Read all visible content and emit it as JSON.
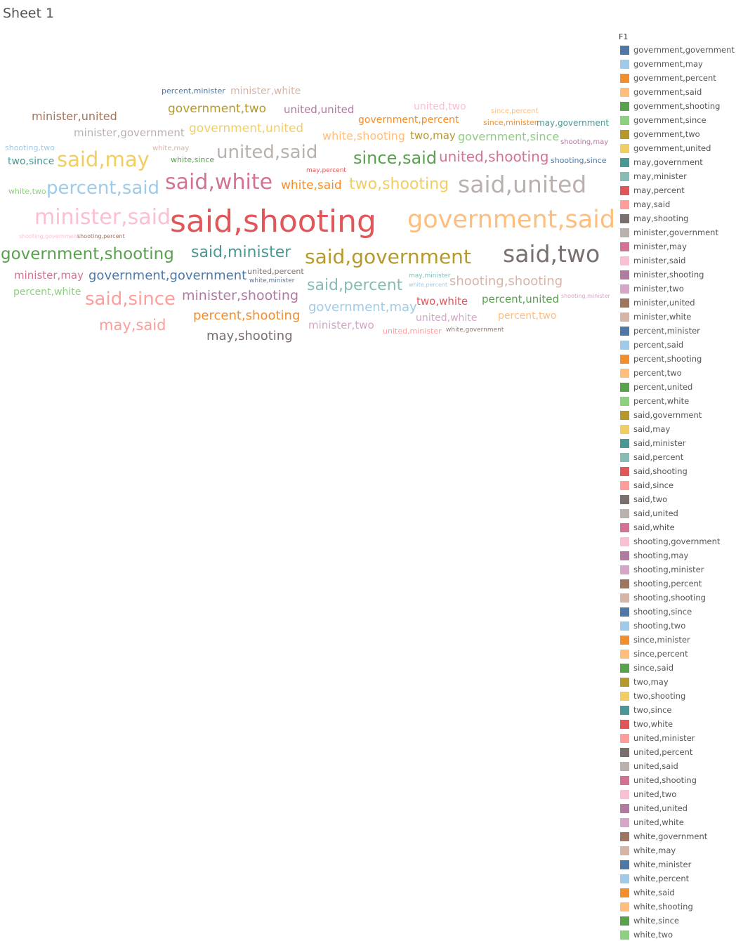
{
  "sheet": {
    "title": "Sheet 1"
  },
  "chart_data": {
    "type": "wordcloud",
    "legend": {
      "title": "F1",
      "placement": "right",
      "items": [
        {
          "label": "government,government",
          "color": "#4e79a7"
        },
        {
          "label": "government,may",
          "color": "#a0cbe8"
        },
        {
          "label": "government,percent",
          "color": "#f28e2b"
        },
        {
          "label": "government,said",
          "color": "#ffbe7d"
        },
        {
          "label": "government,shooting",
          "color": "#59a14f"
        },
        {
          "label": "government,since",
          "color": "#8cd17d"
        },
        {
          "label": "government,two",
          "color": "#b6992d"
        },
        {
          "label": "government,united",
          "color": "#f1ce63"
        },
        {
          "label": "may,government",
          "color": "#499894"
        },
        {
          "label": "may,minister",
          "color": "#86bcb6"
        },
        {
          "label": "may,percent",
          "color": "#e15759"
        },
        {
          "label": "may,said",
          "color": "#ff9d9a"
        },
        {
          "label": "may,shooting",
          "color": "#79706e"
        },
        {
          "label": "minister,government",
          "color": "#bab0ac"
        },
        {
          "label": "minister,may",
          "color": "#d37295"
        },
        {
          "label": "minister,said",
          "color": "#fabfd2"
        },
        {
          "label": "minister,shooting",
          "color": "#b07aa1"
        },
        {
          "label": "minister,two",
          "color": "#d4a6c8"
        },
        {
          "label": "minister,united",
          "color": "#9d7660"
        },
        {
          "label": "minister,white",
          "color": "#d7b5a6"
        },
        {
          "label": "percent,minister",
          "color": "#4e79a7"
        },
        {
          "label": "percent,said",
          "color": "#a0cbe8"
        },
        {
          "label": "percent,shooting",
          "color": "#f28e2b"
        },
        {
          "label": "percent,two",
          "color": "#ffbe7d"
        },
        {
          "label": "percent,united",
          "color": "#59a14f"
        },
        {
          "label": "percent,white",
          "color": "#8cd17d"
        },
        {
          "label": "said,government",
          "color": "#b6992d"
        },
        {
          "label": "said,may",
          "color": "#f1ce63"
        },
        {
          "label": "said,minister",
          "color": "#499894"
        },
        {
          "label": "said,percent",
          "color": "#86bcb6"
        },
        {
          "label": "said,shooting",
          "color": "#e15759"
        },
        {
          "label": "said,since",
          "color": "#ff9d9a"
        },
        {
          "label": "said,two",
          "color": "#79706e"
        },
        {
          "label": "said,united",
          "color": "#bab0ac"
        },
        {
          "label": "said,white",
          "color": "#d37295"
        },
        {
          "label": "shooting,government",
          "color": "#fabfd2"
        },
        {
          "label": "shooting,may",
          "color": "#b07aa1"
        },
        {
          "label": "shooting,minister",
          "color": "#d4a6c8"
        },
        {
          "label": "shooting,percent",
          "color": "#9d7660"
        },
        {
          "label": "shooting,shooting",
          "color": "#d7b5a6"
        },
        {
          "label": "shooting,since",
          "color": "#4e79a7"
        },
        {
          "label": "shooting,two",
          "color": "#a0cbe8"
        },
        {
          "label": "since,minister",
          "color": "#f28e2b"
        },
        {
          "label": "since,percent",
          "color": "#ffbe7d"
        },
        {
          "label": "since,said",
          "color": "#59a14f"
        },
        {
          "label": "two,may",
          "color": "#b6992d"
        },
        {
          "label": "two,shooting",
          "color": "#f1ce63"
        },
        {
          "label": "two,since",
          "color": "#499894"
        },
        {
          "label": "two,white",
          "color": "#e15759"
        },
        {
          "label": "united,minister",
          "color": "#ff9d9a"
        },
        {
          "label": "united,percent",
          "color": "#79706e"
        },
        {
          "label": "united,said",
          "color": "#bab0ac"
        },
        {
          "label": "united,shooting",
          "color": "#d37295"
        },
        {
          "label": "united,two",
          "color": "#fabfd2"
        },
        {
          "label": "united,united",
          "color": "#b07aa1"
        },
        {
          "label": "united,white",
          "color": "#d4a6c8"
        },
        {
          "label": "white,government",
          "color": "#9d7660"
        },
        {
          "label": "white,may",
          "color": "#d7b5a6"
        },
        {
          "label": "white,minister",
          "color": "#4e79a7"
        },
        {
          "label": "white,percent",
          "color": "#a0cbe8"
        },
        {
          "label": "white,said",
          "color": "#f28e2b"
        },
        {
          "label": "white,shooting",
          "color": "#ffbe7d"
        },
        {
          "label": "white,since",
          "color": "#59a14f"
        },
        {
          "label": "white,two",
          "color": "#8cd17d"
        }
      ]
    },
    "words": [
      {
        "text": "said,shooting",
        "weight": 44
      },
      {
        "text": "government,said",
        "weight": 35
      },
      {
        "text": "said,united",
        "weight": 33
      },
      {
        "text": "said,two",
        "weight": 33
      },
      {
        "text": "said,white",
        "weight": 30
      },
      {
        "text": "minister,said",
        "weight": 30
      },
      {
        "text": "said,may",
        "weight": 29
      },
      {
        "text": "said,government",
        "weight": 28
      },
      {
        "text": "united,said",
        "weight": 26
      },
      {
        "text": "percent,said",
        "weight": 26
      },
      {
        "text": "said,since",
        "weight": 26
      },
      {
        "text": "since,said",
        "weight": 24
      },
      {
        "text": "government,shooting",
        "weight": 23
      },
      {
        "text": "said,minister",
        "weight": 22
      },
      {
        "text": "said,percent",
        "weight": 22
      },
      {
        "text": "two,shooting",
        "weight": 22
      },
      {
        "text": "may,said",
        "weight": 21
      },
      {
        "text": "united,shooting",
        "weight": 20
      },
      {
        "text": "minister,shooting",
        "weight": 19
      },
      {
        "text": "shooting,shooting",
        "weight": 18
      },
      {
        "text": "government,government",
        "weight": 18
      },
      {
        "text": "percent,shooting",
        "weight": 18
      },
      {
        "text": "government,may",
        "weight": 18
      },
      {
        "text": "may,shooting",
        "weight": 18
      },
      {
        "text": "government,two",
        "weight": 17
      },
      {
        "text": "government,united",
        "weight": 17
      },
      {
        "text": "white,said",
        "weight": 17
      },
      {
        "text": "minister,united",
        "weight": 16
      },
      {
        "text": "white,shooting",
        "weight": 16
      },
      {
        "text": "government,since",
        "weight": 16
      },
      {
        "text": "minister,may",
        "weight": 15
      },
      {
        "text": "minister,two",
        "weight": 15
      },
      {
        "text": "two,white",
        "weight": 15
      },
      {
        "text": "united,united",
        "weight": 15
      },
      {
        "text": "minister,government",
        "weight": 15
      },
      {
        "text": "two,may",
        "weight": 15
      },
      {
        "text": "percent,united",
        "weight": 15
      },
      {
        "text": "two,since",
        "weight": 14
      },
      {
        "text": "minister,white",
        "weight": 14
      },
      {
        "text": "government,percent",
        "weight": 14
      },
      {
        "text": "percent,two",
        "weight": 14
      },
      {
        "text": "united,white",
        "weight": 14
      },
      {
        "text": "percent,white",
        "weight": 14
      },
      {
        "text": "united,two",
        "weight": 14
      },
      {
        "text": "may,government",
        "weight": 12
      },
      {
        "text": "percent,minister",
        "weight": 11
      },
      {
        "text": "white,since",
        "weight": 11
      },
      {
        "text": "shooting,since",
        "weight": 11
      },
      {
        "text": "shooting,two",
        "weight": 11
      },
      {
        "text": "white,two",
        "weight": 11
      },
      {
        "text": "since,minister",
        "weight": 11
      },
      {
        "text": "united,minister",
        "weight": 11
      },
      {
        "text": "united,percent",
        "weight": 11
      },
      {
        "text": "white,may",
        "weight": 10
      },
      {
        "text": "shooting,may",
        "weight": 10
      },
      {
        "text": "since,percent",
        "weight": 10
      },
      {
        "text": "may,percent",
        "weight": 9
      },
      {
        "text": "white,minister",
        "weight": 9
      },
      {
        "text": "may,minister",
        "weight": 9
      },
      {
        "text": "white,percent",
        "weight": 8
      },
      {
        "text": "white,government",
        "weight": 9
      },
      {
        "text": "shooting,government",
        "weight": 8
      },
      {
        "text": "shooting,percent",
        "weight": 8
      },
      {
        "text": "shooting,minister",
        "weight": 8
      }
    ]
  }
}
